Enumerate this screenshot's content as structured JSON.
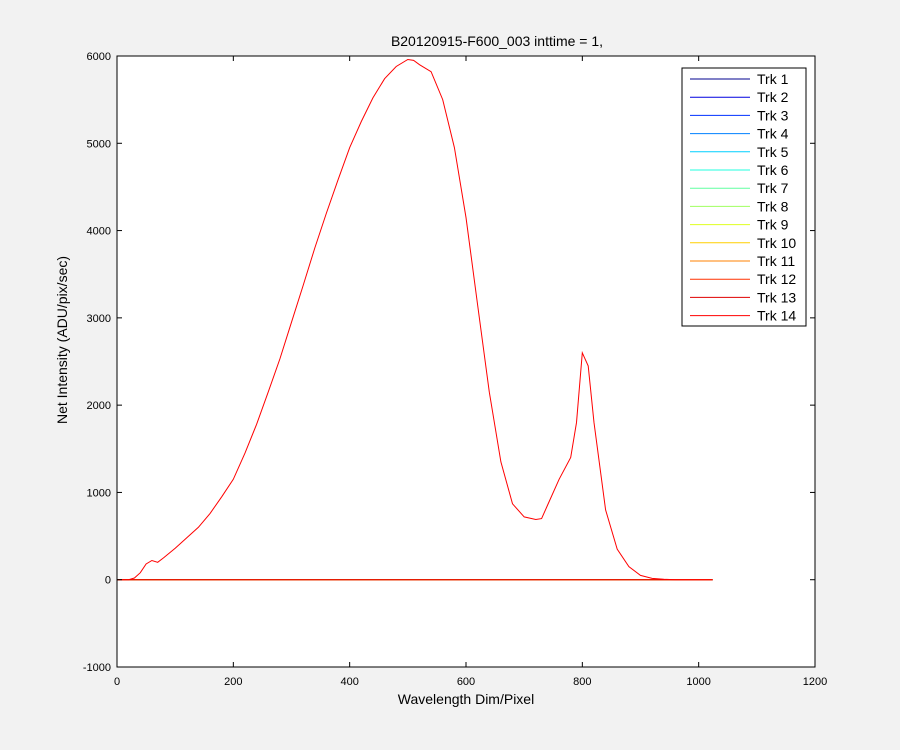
{
  "window": {
    "background": "#f2f2f2"
  },
  "chart_data": {
    "type": "line",
    "title": "B20120915-F600_003 inttime = 1,",
    "xlabel": "Wavelength Dim/Pixel",
    "ylabel": "Net Intensity (ADU/pix/sec)",
    "xlim": [
      0,
      1200
    ],
    "ylim": [
      -1000,
      6000
    ],
    "xticks": [
      "0",
      "200",
      "400",
      "600",
      "800",
      "1000",
      "1200"
    ],
    "yticks": [
      "-1000",
      "0",
      "1000",
      "2000",
      "3000",
      "4000",
      "5000",
      "6000"
    ],
    "grid": false,
    "legend_position": "top-right",
    "series": [
      {
        "name": "Trk 1",
        "color": "#00008f",
        "x": [
          0,
          1024
        ],
        "y": [
          0,
          0
        ]
      },
      {
        "name": "Trk 2",
        "color": "#0000df",
        "x": [
          0,
          1024
        ],
        "y": [
          0,
          0
        ]
      },
      {
        "name": "Trk 3",
        "color": "#0030ff",
        "x": [
          0,
          1024
        ],
        "y": [
          0,
          0
        ]
      },
      {
        "name": "Trk 4",
        "color": "#0080ff",
        "x": [
          0,
          1024
        ],
        "y": [
          0,
          0
        ]
      },
      {
        "name": "Trk 5",
        "color": "#00cfff",
        "x": [
          0,
          1024
        ],
        "y": [
          0,
          0
        ]
      },
      {
        "name": "Trk 6",
        "color": "#20ffdf",
        "x": [
          0,
          1024
        ],
        "y": [
          0,
          0
        ]
      },
      {
        "name": "Trk 7",
        "color": "#60ffa0",
        "x": [
          0,
          1024
        ],
        "y": [
          0,
          0
        ]
      },
      {
        "name": "Trk 8",
        "color": "#a0ff60",
        "x": [
          0,
          1024
        ],
        "y": [
          0,
          0
        ]
      },
      {
        "name": "Trk 9",
        "color": "#dfff20",
        "x": [
          0,
          1024
        ],
        "y": [
          0,
          0
        ]
      },
      {
        "name": "Trk 10",
        "color": "#ffcf00",
        "x": [
          0,
          1024
        ],
        "y": [
          0,
          0
        ]
      },
      {
        "name": "Trk 11",
        "color": "#ff8000",
        "x": [
          0,
          1024
        ],
        "y": [
          0,
          0
        ]
      },
      {
        "name": "Trk 12",
        "color": "#ff3000",
        "x": [
          0,
          1024
        ],
        "y": [
          0,
          0
        ]
      },
      {
        "name": "Trk 13",
        "color": "#df0000",
        "x": [
          0,
          1024
        ],
        "y": [
          0,
          0
        ]
      },
      {
        "name": "Trk 14",
        "color": "#ff0000",
        "x": [
          0,
          20,
          30,
          40,
          50,
          60,
          70,
          80,
          100,
          120,
          140,
          160,
          180,
          200,
          220,
          240,
          260,
          280,
          300,
          320,
          340,
          360,
          380,
          400,
          420,
          440,
          460,
          480,
          500,
          510,
          520,
          540,
          560,
          580,
          600,
          620,
          640,
          660,
          680,
          700,
          720,
          730,
          740,
          760,
          780,
          790,
          800,
          810,
          820,
          840,
          860,
          880,
          900,
          920,
          940,
          960,
          1000,
          1024
        ],
        "y": [
          0,
          0,
          20,
          80,
          180,
          220,
          200,
          250,
          360,
          480,
          600,
          760,
          950,
          1150,
          1450,
          1780,
          2150,
          2530,
          2950,
          3370,
          3800,
          4200,
          4580,
          4950,
          5250,
          5520,
          5740,
          5880,
          5960,
          5950,
          5900,
          5820,
          5500,
          4950,
          4150,
          3150,
          2150,
          1350,
          870,
          720,
          690,
          700,
          850,
          1150,
          1400,
          1800,
          2600,
          2450,
          1800,
          800,
          350,
          150,
          50,
          15,
          5,
          0,
          0,
          0
        ]
      }
    ]
  }
}
